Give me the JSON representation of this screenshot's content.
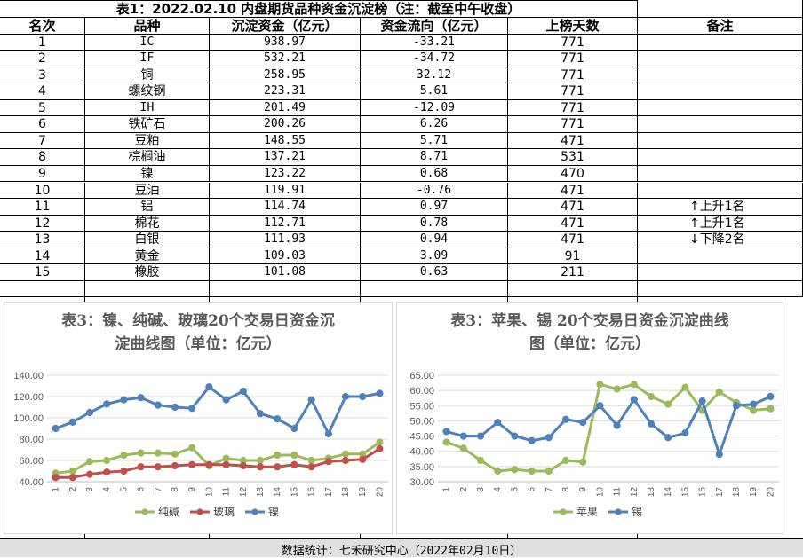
{
  "table": {
    "title": "表1：2022.02.10 内盘期货品种资金沉淀榜（注：截至中午收盘）",
    "headers": [
      "名次",
      "品种",
      "沉淀资金（亿元）",
      "资金流向（亿元）",
      "上榜天数",
      "备注"
    ],
    "rows": [
      {
        "rank": "1",
        "name": "IC",
        "fund": "938.97",
        "flow": "-33.21",
        "days": "771",
        "note": ""
      },
      {
        "rank": "2",
        "name": "IF",
        "fund": "532.21",
        "flow": "-34.72",
        "days": "771",
        "note": ""
      },
      {
        "rank": "3",
        "name": "铜",
        "fund": "258.95",
        "flow": "32.12",
        "days": "771",
        "note": ""
      },
      {
        "rank": "4",
        "name": "螺纹钢",
        "fund": "223.31",
        "flow": "5.61",
        "days": "771",
        "note": ""
      },
      {
        "rank": "5",
        "name": "IH",
        "fund": "201.49",
        "flow": "-12.09",
        "days": "771",
        "note": ""
      },
      {
        "rank": "6",
        "name": "铁矿石",
        "fund": "200.26",
        "flow": "6.26",
        "days": "771",
        "note": ""
      },
      {
        "rank": "7",
        "name": "豆粕",
        "fund": "148.55",
        "flow": "5.71",
        "days": "471",
        "note": ""
      },
      {
        "rank": "8",
        "name": "棕榈油",
        "fund": "137.21",
        "flow": "8.71",
        "days": "531",
        "note": ""
      },
      {
        "rank": "9",
        "name": "镍",
        "fund": "123.22",
        "flow": "0.68",
        "days": "470",
        "note": ""
      },
      {
        "rank": "10",
        "name": "豆油",
        "fund": "119.91",
        "flow": "-0.76",
        "days": "471",
        "note": ""
      },
      {
        "rank": "11",
        "name": "铝",
        "fund": "114.74",
        "flow": "0.97",
        "days": "471",
        "note": "↑上升1名"
      },
      {
        "rank": "12",
        "name": "棉花",
        "fund": "112.71",
        "flow": "0.78",
        "days": "471",
        "note": "↑上升1名"
      },
      {
        "rank": "13",
        "name": "白银",
        "fund": "111.93",
        "flow": "0.94",
        "days": "471",
        "note": "↓下降2名"
      },
      {
        "rank": "14",
        "name": "黄金",
        "fund": "109.03",
        "flow": "3.09",
        "days": "91",
        "note": ""
      },
      {
        "rank": "15",
        "name": "橡胶",
        "fund": "101.08",
        "flow": "0.63",
        "days": "211",
        "note": ""
      }
    ]
  },
  "chart_data": [
    {
      "type": "line",
      "title_line1": "表3：镍、纯碱、玻璃20个交易日资金沉",
      "title_line2": "淀曲线图（单位：亿元）",
      "x": [
        "1",
        "2",
        "3",
        "4",
        "5",
        "6",
        "7",
        "8",
        "9",
        "10",
        "11",
        "12",
        "13",
        "14",
        "15",
        "16",
        "17",
        "18",
        "19",
        "20"
      ],
      "ylim": [
        40,
        140
      ],
      "yticks": [
        "40.00",
        "60.00",
        "80.00",
        "100.00",
        "120.00",
        "140.00"
      ],
      "grid": true,
      "legend_position": "bottom",
      "series": [
        {
          "name": "纯碱",
          "color": "#9bbb59",
          "values": [
            48,
            50,
            59,
            60,
            65,
            67,
            67,
            66,
            72,
            55,
            62,
            60,
            60,
            65,
            65,
            60,
            62,
            66,
            66,
            77
          ]
        },
        {
          "name": "玻璃",
          "color": "#c0504d",
          "values": [
            44,
            44,
            47,
            49,
            50,
            54,
            54,
            55,
            56,
            56,
            56,
            55,
            54,
            54,
            56,
            54,
            59,
            60,
            61,
            71
          ]
        },
        {
          "name": "镍",
          "color": "#4f81bd",
          "values": [
            90,
            96,
            105,
            113,
            117,
            119,
            112,
            110,
            109,
            129,
            117,
            125,
            104,
            99,
            90,
            117,
            85,
            120,
            120,
            123
          ]
        }
      ]
    },
    {
      "type": "line",
      "title_line1": "表3：苹果、锡 20个交易日资金沉淀曲线",
      "title_line2": "图（单位：亿元）",
      "x": [
        "1",
        "2",
        "3",
        "4",
        "5",
        "6",
        "7",
        "8",
        "9",
        "10",
        "11",
        "12",
        "13",
        "14",
        "15",
        "16",
        "17",
        "18",
        "19",
        "20"
      ],
      "ylim": [
        30,
        65
      ],
      "yticks": [
        "30.00",
        "35.00",
        "40.00",
        "45.00",
        "50.00",
        "55.00",
        "60.00",
        "65.00"
      ],
      "grid": true,
      "legend_position": "bottom",
      "series": [
        {
          "name": "苹果",
          "color": "#9bbb59",
          "values": [
            43,
            41,
            37,
            33.5,
            34,
            33.5,
            33.5,
            37,
            36.5,
            62,
            60.5,
            62,
            58,
            55.5,
            61,
            53.5,
            59.5,
            56,
            53.5,
            54
          ]
        },
        {
          "name": "锡",
          "color": "#4f81bd",
          "values": [
            46.5,
            45,
            45,
            49.5,
            45,
            43.5,
            44.5,
            50.5,
            49.5,
            55,
            48.5,
            57,
            49,
            44.5,
            46,
            56.5,
            39,
            55,
            55.5,
            58
          ]
        }
      ]
    }
  ],
  "footer": "数据统计：七禾研究中心（2022年02月10日）"
}
